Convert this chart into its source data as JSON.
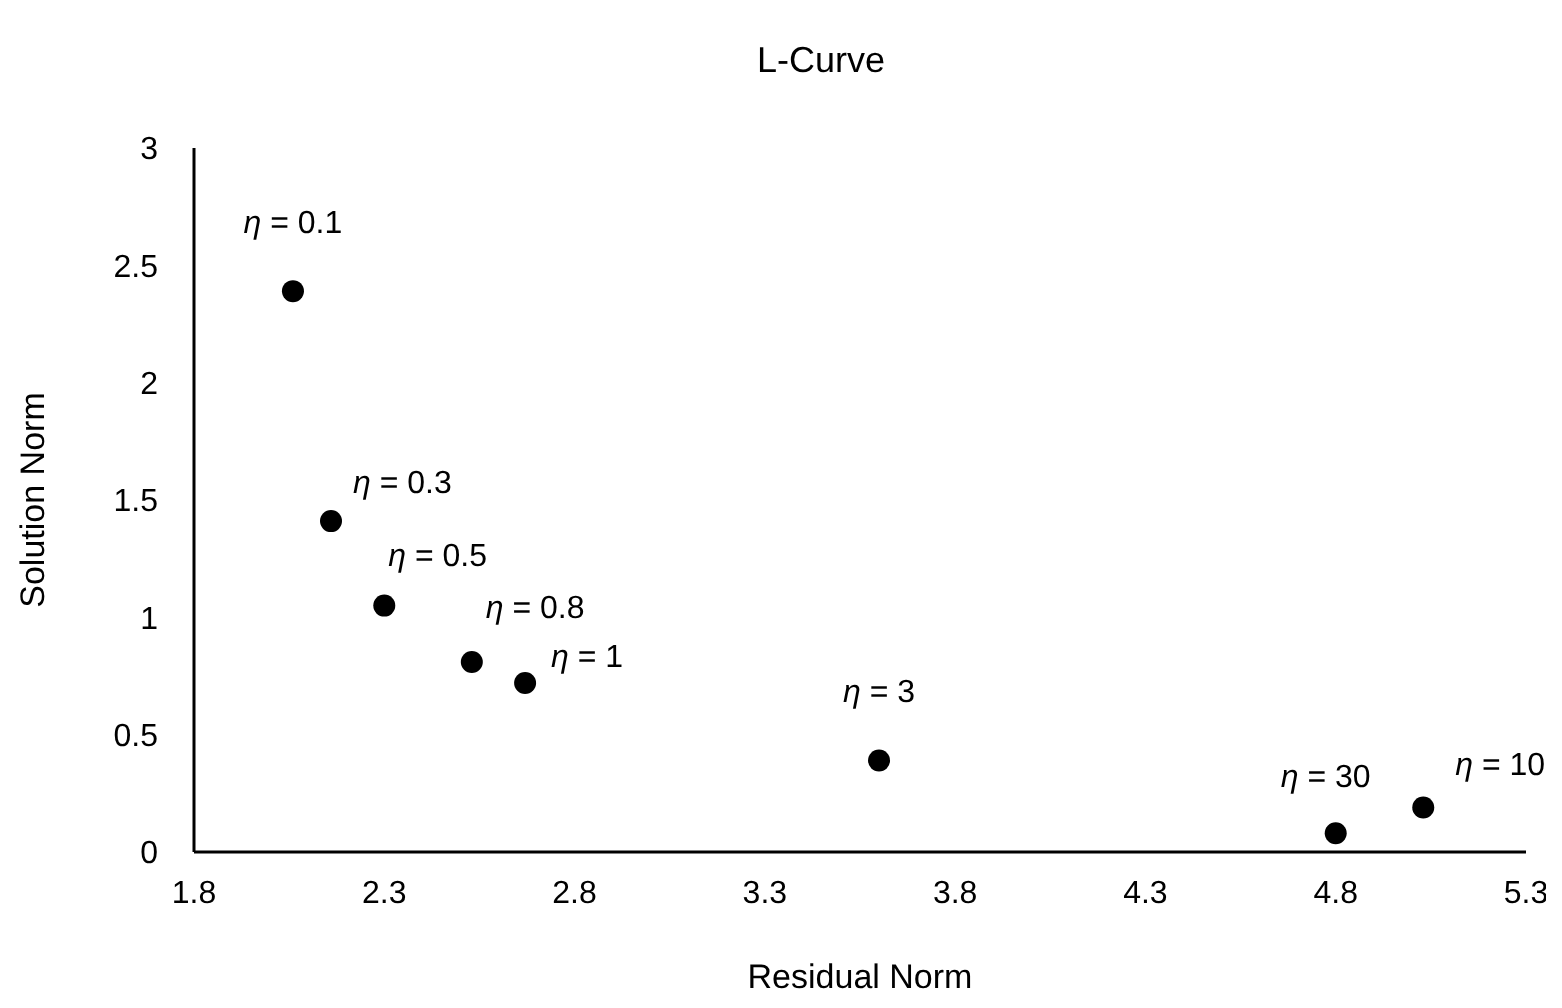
{
  "chart_data": {
    "type": "scatter",
    "title": "L-Curve",
    "xlabel": "Residual Norm",
    "ylabel": "Solution Norm",
    "x": [
      2.06,
      2.16,
      2.3,
      2.53,
      2.67,
      3.6,
      4.8,
      5.03
    ],
    "series": [
      {
        "color": "#000000",
        "values": [
          2.39,
          1.41,
          1.05,
          0.81,
          0.72,
          0.39,
          0.08,
          0.19
        ]
      }
    ],
    "xlim": [
      1.8,
      5.3
    ],
    "xticks": [
      1.8,
      2.3,
      2.8,
      3.3,
      3.8,
      4.3,
      4.8,
      5.3
    ],
    "ylim": [
      0,
      3
    ],
    "yticks": [
      0,
      0.5,
      1,
      1.5,
      2,
      2.5,
      3
    ],
    "grid": false,
    "legend": false,
    "marker": "circle",
    "annotations": [
      {
        "text": "η = 0.1",
        "x": 2.06,
        "y": 2.39
      },
      {
        "text": "η = 0.3",
        "x": 2.16,
        "y": 1.41
      },
      {
        "text": "η = 0.5",
        "x": 2.3,
        "y": 1.05
      },
      {
        "text": "η = 0.8",
        "x": 2.53,
        "y": 0.81
      },
      {
        "text": "η = 1",
        "x": 2.67,
        "y": 0.72
      },
      {
        "text": "η = 3",
        "x": 3.6,
        "y": 0.39
      },
      {
        "text": "η = 30",
        "x": 4.8,
        "y": 0.08
      },
      {
        "text": "η = 10",
        "x": 5.03,
        "y": 0.19
      }
    ]
  }
}
